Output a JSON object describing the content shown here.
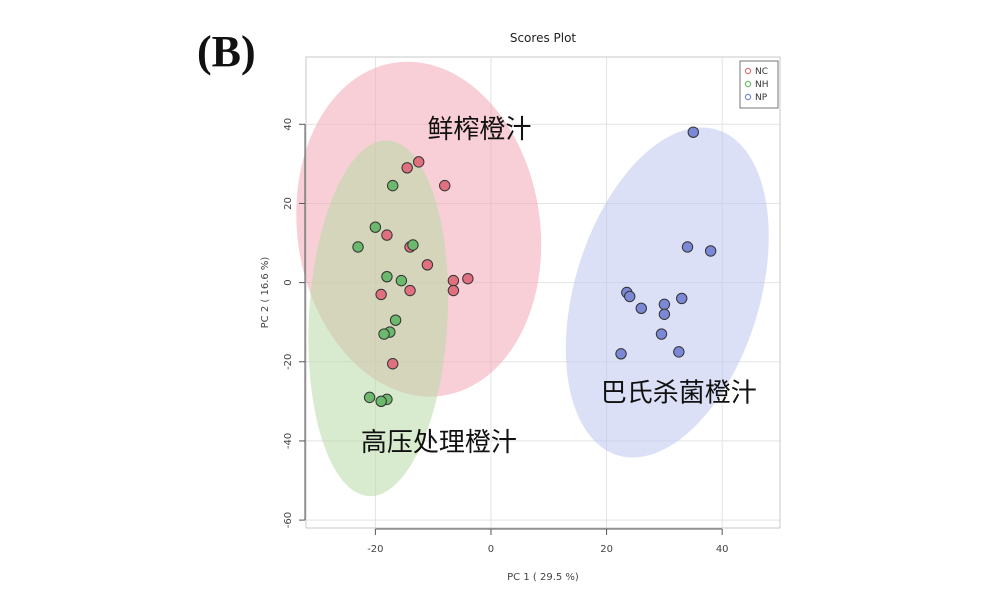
{
  "panel_label": "(B)",
  "chart_data": {
    "type": "scatter",
    "title": "Scores Plot",
    "xlabel": "PC 1 ( 29.5 %)",
    "ylabel": "PC 2 ( 16.6 %)",
    "xlim": [
      -32,
      50
    ],
    "ylim": [
      -62,
      57
    ],
    "xticks": [
      -20,
      0,
      20,
      40
    ],
    "yticks": [
      -60,
      -40,
      -20,
      0,
      20,
      40
    ],
    "grid": true,
    "legend_position": "top-right",
    "series": [
      {
        "name": "NC",
        "color": "#e07080",
        "fill": "#f2a7b5",
        "points": [
          [
            -12.5,
            30.5
          ],
          [
            -14.5,
            29
          ],
          [
            -8,
            24.5
          ],
          [
            -18,
            12
          ],
          [
            -14,
            9
          ],
          [
            -11,
            4.5
          ],
          [
            -4,
            1
          ],
          [
            -6.5,
            0.5
          ],
          [
            -6.5,
            -2
          ],
          [
            -14,
            -2
          ],
          [
            -19,
            -3
          ],
          [
            -17,
            -20.5
          ]
        ],
        "ellipse": {
          "cx": -12.5,
          "cy": 13.5,
          "rx": 21,
          "ry": 42.5,
          "angle": -8
        }
      },
      {
        "name": "NH",
        "color": "#6cb86c",
        "fill": "#b8dba8",
        "points": [
          [
            -17,
            24.5
          ],
          [
            -20,
            14
          ],
          [
            -23,
            9
          ],
          [
            -13.5,
            9.5
          ],
          [
            -18,
            1.5
          ],
          [
            -15.5,
            0.5
          ],
          [
            -16.5,
            -9.5
          ],
          [
            -17.5,
            -12.5
          ],
          [
            -18.5,
            -13
          ],
          [
            -21,
            -29
          ],
          [
            -18,
            -29.5
          ],
          [
            -19,
            -30
          ]
        ],
        "ellipse": {
          "cx": -19.5,
          "cy": -9,
          "rx": 12,
          "ry": 45,
          "angle": 3
        }
      },
      {
        "name": "NP",
        "color": "#7a88d6",
        "fill": "#bfc6f0",
        "points": [
          [
            35,
            38
          ],
          [
            34,
            9
          ],
          [
            38,
            8
          ],
          [
            23.5,
            -2.5
          ],
          [
            24,
            -3.5
          ],
          [
            33,
            -4
          ],
          [
            30,
            -5.5
          ],
          [
            26,
            -6.5
          ],
          [
            30,
            -8
          ],
          [
            29.5,
            -13
          ],
          [
            22.5,
            -18
          ],
          [
            32.5,
            -17.5
          ]
        ],
        "ellipse": {
          "cx": 30.5,
          "cy": -2.5,
          "rx": 16,
          "ry": 43,
          "angle": 17
        }
      }
    ],
    "annotations": [
      {
        "text": "鲜榨橙汁",
        "x": -11,
        "y": 36.5
      },
      {
        "text": "高压处理橙汁",
        "x": -22.5,
        "y": -42.5
      },
      {
        "text": "巴氏杀菌橙汁",
        "x": 19,
        "y": -30
      }
    ]
  }
}
